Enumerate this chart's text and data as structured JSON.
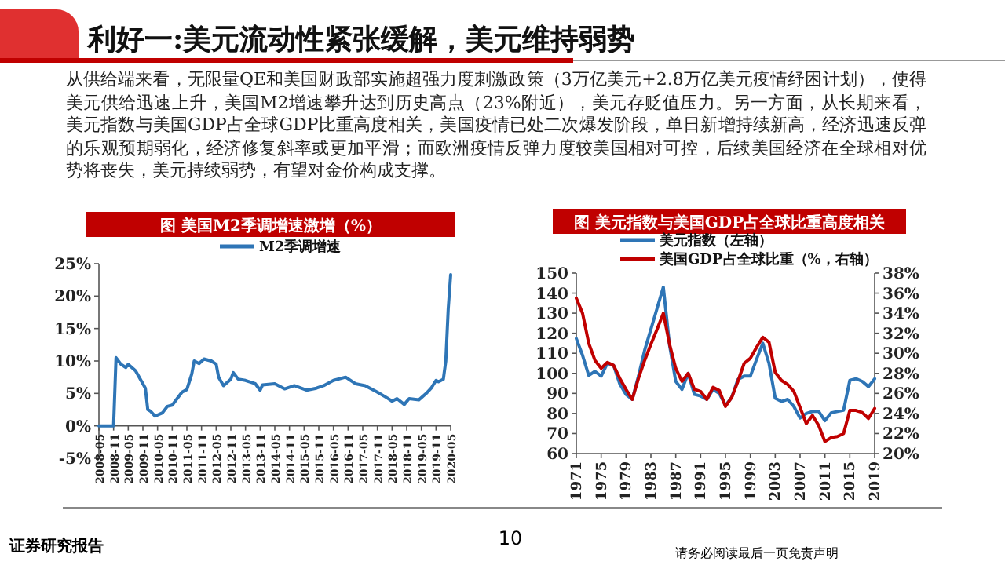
{
  "chart_data": [
    {
      "type": "line",
      "title": "图  美国M2季调增速激增（%）",
      "legend": "top",
      "grid": false,
      "annotations": [
        "利好一:美元流动性紧张缓解，美元维持弱势",
        "从供给端来看，无限量QE和美国财政部实施超强力度刺激政策（3万亿美元+2.8万亿美元疫情纾困计划），使得美元供给迅速上升，美国M2增速攀升达到历史高点（23%附近），美元存贬值压力。另一方面，从长期来看，美元指数与美国GDP占全球GDP比重高度相关，美国疫情已处二次爆发阶段，单日新增持续新高，经济迅速反弹的乐观预期弱化，经济修复斜率或更加平滑；而欧洲疫情反弹力度较美国相对可控，后续美国经济在全球相对优势将丧失，美元持续弱势，有望对金价构成支撑。",
        "证券研究报告",
        "10",
        "请务必阅读最后一页免责声明"
      ],
      "xlim": [
        "2008-05",
        "2020-05"
      ],
      "xticks": [
        "2008-05",
        "2008-11",
        "2009-05",
        "2009-11",
        "2010-05",
        "2010-11",
        "2011-05",
        "2011-11",
        "2012-05",
        "2012-11",
        "2013-05",
        "2013-11",
        "2014-05",
        "2014-11",
        "2015-05",
        "2015-11",
        "2016-05",
        "2016-11",
        "2017-05",
        "2017-11",
        "2018-05",
        "2018-11",
        "2019-05",
        "2019-11",
        "2020-05"
      ],
      "ylim": [
        -5,
        25
      ],
      "yticks": [
        {
          "value": -5,
          "label": "-5%"
        },
        {
          "value": 0,
          "label": "0%"
        },
        {
          "value": 5,
          "label": "5%"
        },
        {
          "value": 10,
          "label": "10%"
        },
        {
          "value": 15,
          "label": "15%"
        },
        {
          "value": 20,
          "label": "20%"
        },
        {
          "value": 25,
          "label": "25%"
        }
      ],
      "series": [
        {
          "name": "M2季调增速",
          "color": "#2e75b6",
          "x": [
            "2008-05",
            "2008-11",
            "2008-12",
            "2009-02",
            "2009-04",
            "2009-05",
            "2009-08",
            "2009-11",
            "2009-12",
            "2010-01",
            "2010-02",
            "2010-04",
            "2010-07",
            "2010-09",
            "2010-11",
            "2011-01",
            "2011-03",
            "2011-05",
            "2011-07",
            "2011-08",
            "2011-10",
            "2011-12",
            "2012-03",
            "2012-05",
            "2012-06",
            "2012-08",
            "2012-11",
            "2012-12",
            "2013-02",
            "2013-05",
            "2013-09",
            "2013-11",
            "2013-12",
            "2014-05",
            "2014-09",
            "2015-01",
            "2015-06",
            "2015-10",
            "2016-01",
            "2016-05",
            "2016-10",
            "2017-02",
            "2017-06",
            "2017-11",
            "2018-03",
            "2018-05",
            "2018-07",
            "2018-10",
            "2018-12",
            "2019-04",
            "2019-07",
            "2019-09",
            "2019-11",
            "2019-12",
            "2020-02",
            "2020-03",
            "2020-04",
            "2020-05"
          ],
          "values": [
            0,
            0,
            10.5,
            9.5,
            9,
            9.5,
            8.5,
            6.5,
            5.8,
            2.5,
            2.3,
            1.5,
            2,
            3,
            3.2,
            4.2,
            5.2,
            5.6,
            8,
            10,
            9.6,
            10.3,
            10,
            9.5,
            7.5,
            6.2,
            7.2,
            8.2,
            7.2,
            7,
            6.5,
            5.5,
            6.3,
            6.5,
            5.7,
            6.2,
            5.5,
            5.8,
            6.2,
            7,
            7.5,
            6.5,
            6.2,
            5.2,
            4.3,
            3.8,
            4.2,
            3.3,
            4.2,
            4,
            5,
            5.8,
            7,
            6.8,
            7.2,
            10,
            18,
            23.3
          ]
        }
      ]
    },
    {
      "type": "line",
      "title": "图  美元指数与美国GDP占全球比重高度相关",
      "legend": "top",
      "grid": false,
      "xlim": [
        1971,
        2019
      ],
      "xticks": [
        1971,
        1975,
        1979,
        1983,
        1987,
        1991,
        1995,
        1999,
        2003,
        2007,
        2011,
        2015,
        2019
      ],
      "ylim": [
        60,
        150
      ],
      "yticks": [
        60,
        70,
        80,
        90,
        100,
        110,
        120,
        130,
        140,
        150
      ],
      "y2lim": [
        20,
        38
      ],
      "y2ticks": [
        {
          "value": 20,
          "label": "20%"
        },
        {
          "value": 22,
          "label": "22%"
        },
        {
          "value": 24,
          "label": "24%"
        },
        {
          "value": 26,
          "label": "26%"
        },
        {
          "value": 28,
          "label": "28%"
        },
        {
          "value": 30,
          "label": "30%"
        },
        {
          "value": 32,
          "label": "32%"
        },
        {
          "value": 34,
          "label": "34%"
        },
        {
          "value": 36,
          "label": "36%"
        },
        {
          "value": 38,
          "label": "38%"
        }
      ],
      "x": [
        1971,
        1972,
        1973,
        1974,
        1975,
        1976,
        1977,
        1978,
        1979,
        1980,
        1981,
        1982,
        1983,
        1984,
        1985,
        1986,
        1987,
        1988,
        1989,
        1990,
        1991,
        1992,
        1993,
        1994,
        1995,
        1996,
        1997,
        1998,
        1999,
        2000,
        2001,
        2002,
        2003,
        2004,
        2005,
        2006,
        2007,
        2008,
        2009,
        2010,
        2011,
        2012,
        2013,
        2014,
        2015,
        2016,
        2017,
        2018,
        2019
      ],
      "series": [
        {
          "name": "美元指数（左轴）",
          "color": "#2e75b6",
          "values": [
            117.4,
            109,
            99,
            101,
            98.6,
            105,
            104,
            94.7,
            89.5,
            87,
            98.6,
            111.6,
            122,
            132.5,
            143,
            114,
            96,
            92,
            100,
            89.5,
            88.7,
            87,
            92,
            90,
            84,
            88,
            97,
            98.6,
            98.6,
            107,
            115,
            105,
            87.6,
            86,
            87,
            83.5,
            77.7,
            80,
            81,
            81,
            76.4,
            80.3,
            81,
            81.6,
            96.5,
            97.3,
            96,
            93.4,
            97.3
          ]
        },
        {
          "name": "美国GDP占全球比重（%，右轴）",
          "color": "#c00000",
          "axis": "y2",
          "values": [
            35.5,
            34,
            31,
            29.3,
            28.5,
            29.1,
            28.8,
            27.5,
            26.4,
            25.4,
            27.5,
            29.3,
            30.9,
            32.4,
            34,
            30.9,
            28.5,
            27.2,
            28,
            26.4,
            26.2,
            25.4,
            26.6,
            26.3,
            24.7,
            25.6,
            27.2,
            29,
            29.5,
            30.6,
            31.6,
            31.1,
            28.1,
            27.3,
            26.9,
            26.2,
            24.6,
            23,
            23.8,
            22.8,
            21.2,
            21.6,
            21.7,
            22,
            24.3,
            24.3,
            24.1,
            23.5,
            24.5
          ]
        }
      ]
    }
  ]
}
